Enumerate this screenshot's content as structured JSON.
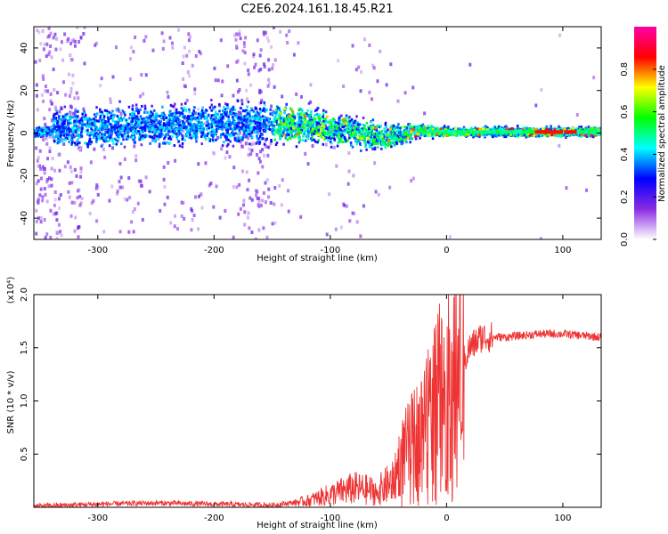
{
  "title": "C2E6.2024.161.18.45.R21",
  "chart_data": [
    {
      "type": "heatmap",
      "title": "C2E6.2024.161.18.45.R21",
      "xlabel": "Height of straight line (km)",
      "ylabel": "Frequency (Hz)",
      "xlim": [
        -355,
        133
      ],
      "ylim": [
        -50,
        50
      ],
      "x_ticks": [
        -300,
        -200,
        -100,
        0,
        100
      ],
      "y_ticks": [
        -40,
        -20,
        0,
        20,
        40
      ],
      "colorbar": {
        "label": "Normalized spectral amplitude",
        "range": [
          0.0,
          1.0
        ],
        "ticks": [
          "0.0",
          "0.2",
          "0.4",
          "0.6",
          "0.8"
        ],
        "colors": [
          "#ffffff",
          "#8a2be2",
          "#0000ff",
          "#00ffff",
          "#00ff00",
          "#ffff00",
          "#ff0000",
          "#ff00aa"
        ]
      },
      "band": {
        "description_points": [
          {
            "x": -340,
            "center": 2,
            "half_width": 12
          },
          {
            "x": -150,
            "center": 5,
            "half_width": 13
          },
          {
            "x": -100,
            "center": 2,
            "half_width": 10
          },
          {
            "x": -50,
            "center": -2,
            "half_width": 8
          },
          {
            "x": -25,
            "center": 1,
            "half_width": 4
          },
          {
            "x": 0,
            "center": 0.5,
            "half_width": 3
          },
          {
            "x": 133,
            "center": 0.5,
            "half_width": 3
          }
        ]
      }
    },
    {
      "type": "line",
      "xlabel": "Height of straight line (km)",
      "ylabel": "SNR (10 * v/v)",
      "y_multiplier": "(x10⁴)",
      "xlim": [
        -355,
        133
      ],
      "ylim": [
        0,
        20000
      ],
      "x_ticks": [
        -300,
        -200,
        -100,
        0,
        100
      ],
      "y_ticks": [
        "0.5",
        "1.0",
        "1.5",
        "2.0"
      ],
      "y_tick_values": [
        5000,
        10000,
        15000,
        20000
      ],
      "series": [
        {
          "color": "#ee3333",
          "trend_x": [
            -355,
            -300,
            -250,
            -200,
            -150,
            -120,
            -100,
            -80,
            -60,
            -45,
            -40,
            -30,
            -20,
            -10,
            0,
            10,
            20,
            30,
            50,
            80,
            100,
            133
          ],
          "trend_y": [
            100,
            300,
            400,
            300,
            200,
            600,
            1200,
            1800,
            1500,
            2500,
            4500,
            6000,
            8000,
            10000,
            11000,
            12500,
            15000,
            16000,
            16000,
            16300,
            16300,
            16000
          ]
        }
      ]
    }
  ]
}
